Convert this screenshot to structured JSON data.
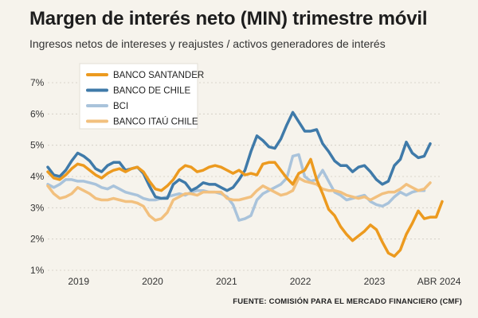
{
  "chart_data": {
    "type": "line",
    "title": "Margen de interés neto (MIN) trimestre móvil",
    "subtitle": "Ingresos netos de intereses y reajustes / activos generadores de interés",
    "source": "FUENTE: COMISIÓN PARA EL MERCADO FINANCIERO (CMF)",
    "xlabel": "",
    "ylabel": "",
    "ylim": [
      1,
      7
    ],
    "yticks": [
      1,
      2,
      3,
      4,
      5,
      6,
      7
    ],
    "ytick_labels": [
      "1%",
      "2%",
      "3%",
      "4%",
      "5%",
      "6%",
      "7%"
    ],
    "xlim": [
      0,
      64
    ],
    "xticks": [
      {
        "pos": 5,
        "label": "2019"
      },
      {
        "pos": 17,
        "label": "2020"
      },
      {
        "pos": 29,
        "label": "2021"
      },
      {
        "pos": 41,
        "label": "2022"
      },
      {
        "pos": 53,
        "label": "2023"
      },
      {
        "pos": 63.5,
        "label": "ABR 2024"
      }
    ],
    "grid": true,
    "legend_position": "top-left",
    "series": [
      {
        "name": "BANCO SANTANDER",
        "color": "#ec9a1f",
        "values": [
          4.15,
          3.95,
          3.9,
          4.05,
          4.25,
          4.4,
          4.35,
          4.2,
          4.05,
          3.95,
          4.1,
          4.2,
          4.25,
          4.15,
          4.25,
          4.3,
          4.15,
          3.85,
          3.6,
          3.55,
          3.7,
          3.9,
          4.2,
          4.35,
          4.3,
          4.15,
          4.2,
          4.3,
          4.35,
          4.3,
          4.2,
          4.1,
          4.2,
          4.05,
          4.1,
          4.05,
          4.4,
          4.45,
          4.45,
          4.2,
          3.95,
          3.75,
          4.1,
          4.2,
          4.55,
          3.9,
          3.45,
          2.95,
          2.75,
          2.4,
          2.15,
          1.95,
          2.1,
          2.25,
          2.45,
          2.3,
          1.9,
          1.55,
          1.45,
          1.65,
          2.15,
          2.5,
          2.9,
          2.65,
          2.7,
          2.7,
          3.2
        ]
      },
      {
        "name": "BANCO DE CHILE",
        "color": "#3f7aa9",
        "values": [
          4.3,
          4.05,
          4.0,
          4.2,
          4.5,
          4.75,
          4.65,
          4.5,
          4.25,
          4.15,
          4.35,
          4.45,
          4.45,
          4.2,
          4.25,
          4.3,
          4.1,
          3.7,
          3.35,
          3.3,
          3.3,
          3.75,
          3.9,
          3.8,
          3.55,
          3.65,
          3.8,
          3.75,
          3.75,
          3.65,
          3.55,
          3.65,
          3.9,
          4.2,
          4.8,
          5.3,
          5.15,
          4.95,
          4.9,
          5.2,
          5.65,
          6.05,
          5.75,
          5.45,
          5.45,
          5.5,
          5.05,
          4.8,
          4.5,
          4.35,
          4.35,
          4.15,
          4.3,
          4.35,
          4.15,
          3.9,
          3.75,
          3.85,
          4.35,
          4.55,
          5.1,
          4.75,
          4.6,
          4.65,
          5.05
        ]
      },
      {
        "name": "BCI",
        "color": "#a9c3db",
        "values": [
          3.75,
          3.65,
          3.75,
          3.9,
          3.9,
          3.85,
          3.85,
          3.8,
          3.75,
          3.65,
          3.6,
          3.7,
          3.6,
          3.5,
          3.45,
          3.4,
          3.3,
          3.25,
          3.25,
          3.3,
          3.35,
          3.4,
          3.45,
          3.4,
          3.5,
          3.55,
          3.55,
          3.5,
          3.5,
          3.45,
          3.35,
          3.1,
          2.6,
          2.65,
          2.75,
          3.25,
          3.45,
          3.55,
          3.65,
          3.75,
          3.95,
          4.65,
          4.7,
          4.0,
          3.85,
          3.9,
          4.2,
          3.85,
          3.5,
          3.4,
          3.25,
          3.3,
          3.35,
          3.4,
          3.2,
          3.1,
          3.05,
          3.15,
          3.35,
          3.5,
          3.4,
          3.5,
          3.55,
          3.55
        ]
      },
      {
        "name": "BANCO ITAÚ CHILE",
        "color": "#f2c07e",
        "values": [
          3.7,
          3.45,
          3.3,
          3.35,
          3.45,
          3.65,
          3.55,
          3.45,
          3.3,
          3.25,
          3.25,
          3.3,
          3.25,
          3.2,
          3.2,
          3.15,
          3.05,
          2.75,
          2.6,
          2.65,
          2.85,
          3.25,
          3.35,
          3.45,
          3.45,
          3.4,
          3.5,
          3.5,
          3.5,
          3.5,
          3.3,
          3.25,
          3.25,
          3.3,
          3.35,
          3.55,
          3.7,
          3.6,
          3.5,
          3.4,
          3.45,
          3.55,
          3.95,
          3.85,
          3.8,
          3.75,
          3.6,
          3.55,
          3.55,
          3.5,
          3.4,
          3.35,
          3.3,
          3.35,
          3.25,
          3.35,
          3.45,
          3.5,
          3.5,
          3.6,
          3.75,
          3.65,
          3.55,
          3.6,
          3.8
        ]
      }
    ]
  }
}
